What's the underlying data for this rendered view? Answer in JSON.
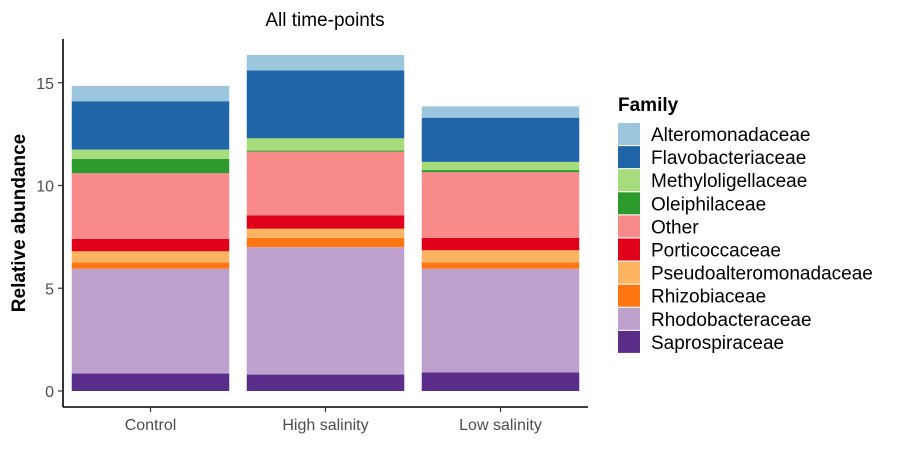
{
  "chart_data": {
    "type": "bar",
    "stacked": true,
    "title": "All time-points",
    "xlabel": "",
    "ylabel": "Relative abundance",
    "ylim": [
      0,
      17
    ],
    "yticks": [
      0,
      5,
      10,
      15
    ],
    "grid": false,
    "legend_title": "Family",
    "legend_position": "right",
    "categories": [
      "Control",
      "High salinity",
      "Low salinity"
    ],
    "series": [
      {
        "name": "Saprospiraceae",
        "color": "#5a2d8a",
        "values": [
          0.85,
          0.8,
          0.9
        ]
      },
      {
        "name": "Rhodobacteraceae",
        "color": "#bda0cc",
        "values": [
          5.1,
          6.2,
          5.05
        ]
      },
      {
        "name": "Rhizobiaceae",
        "color": "#ff7511",
        "values": [
          0.3,
          0.45,
          0.3
        ]
      },
      {
        "name": "Pseudoalteromonadaceae",
        "color": "#fdb462",
        "values": [
          0.55,
          0.45,
          0.6
        ]
      },
      {
        "name": "Porticoccaceae",
        "color": "#e0001a",
        "values": [
          0.6,
          0.65,
          0.6
        ]
      },
      {
        "name": "Other",
        "color": "#f98a8a",
        "values": [
          3.2,
          3.1,
          3.2
        ]
      },
      {
        "name": "Oleiphilaceae",
        "color": "#2c9a2c",
        "values": [
          0.7,
          0.05,
          0.1
        ]
      },
      {
        "name": "Methyloligellaceae",
        "color": "#a6dc7c",
        "values": [
          0.45,
          0.6,
          0.4
        ]
      },
      {
        "name": "Flavobacteriaceae",
        "color": "#1f65a8",
        "values": [
          2.35,
          3.3,
          2.15
        ]
      },
      {
        "name": "Alteromonadaceae",
        "color": "#9cc5de",
        "values": [
          0.75,
          0.75,
          0.55
        ]
      }
    ],
    "legend_order": [
      "Alteromonadaceae",
      "Flavobacteriaceae",
      "Methyloligellaceae",
      "Oleiphilaceae",
      "Other",
      "Porticoccaceae",
      "Pseudoalteromonadaceae",
      "Rhizobiaceae",
      "Rhodobacteraceae",
      "Saprospiraceae"
    ]
  }
}
